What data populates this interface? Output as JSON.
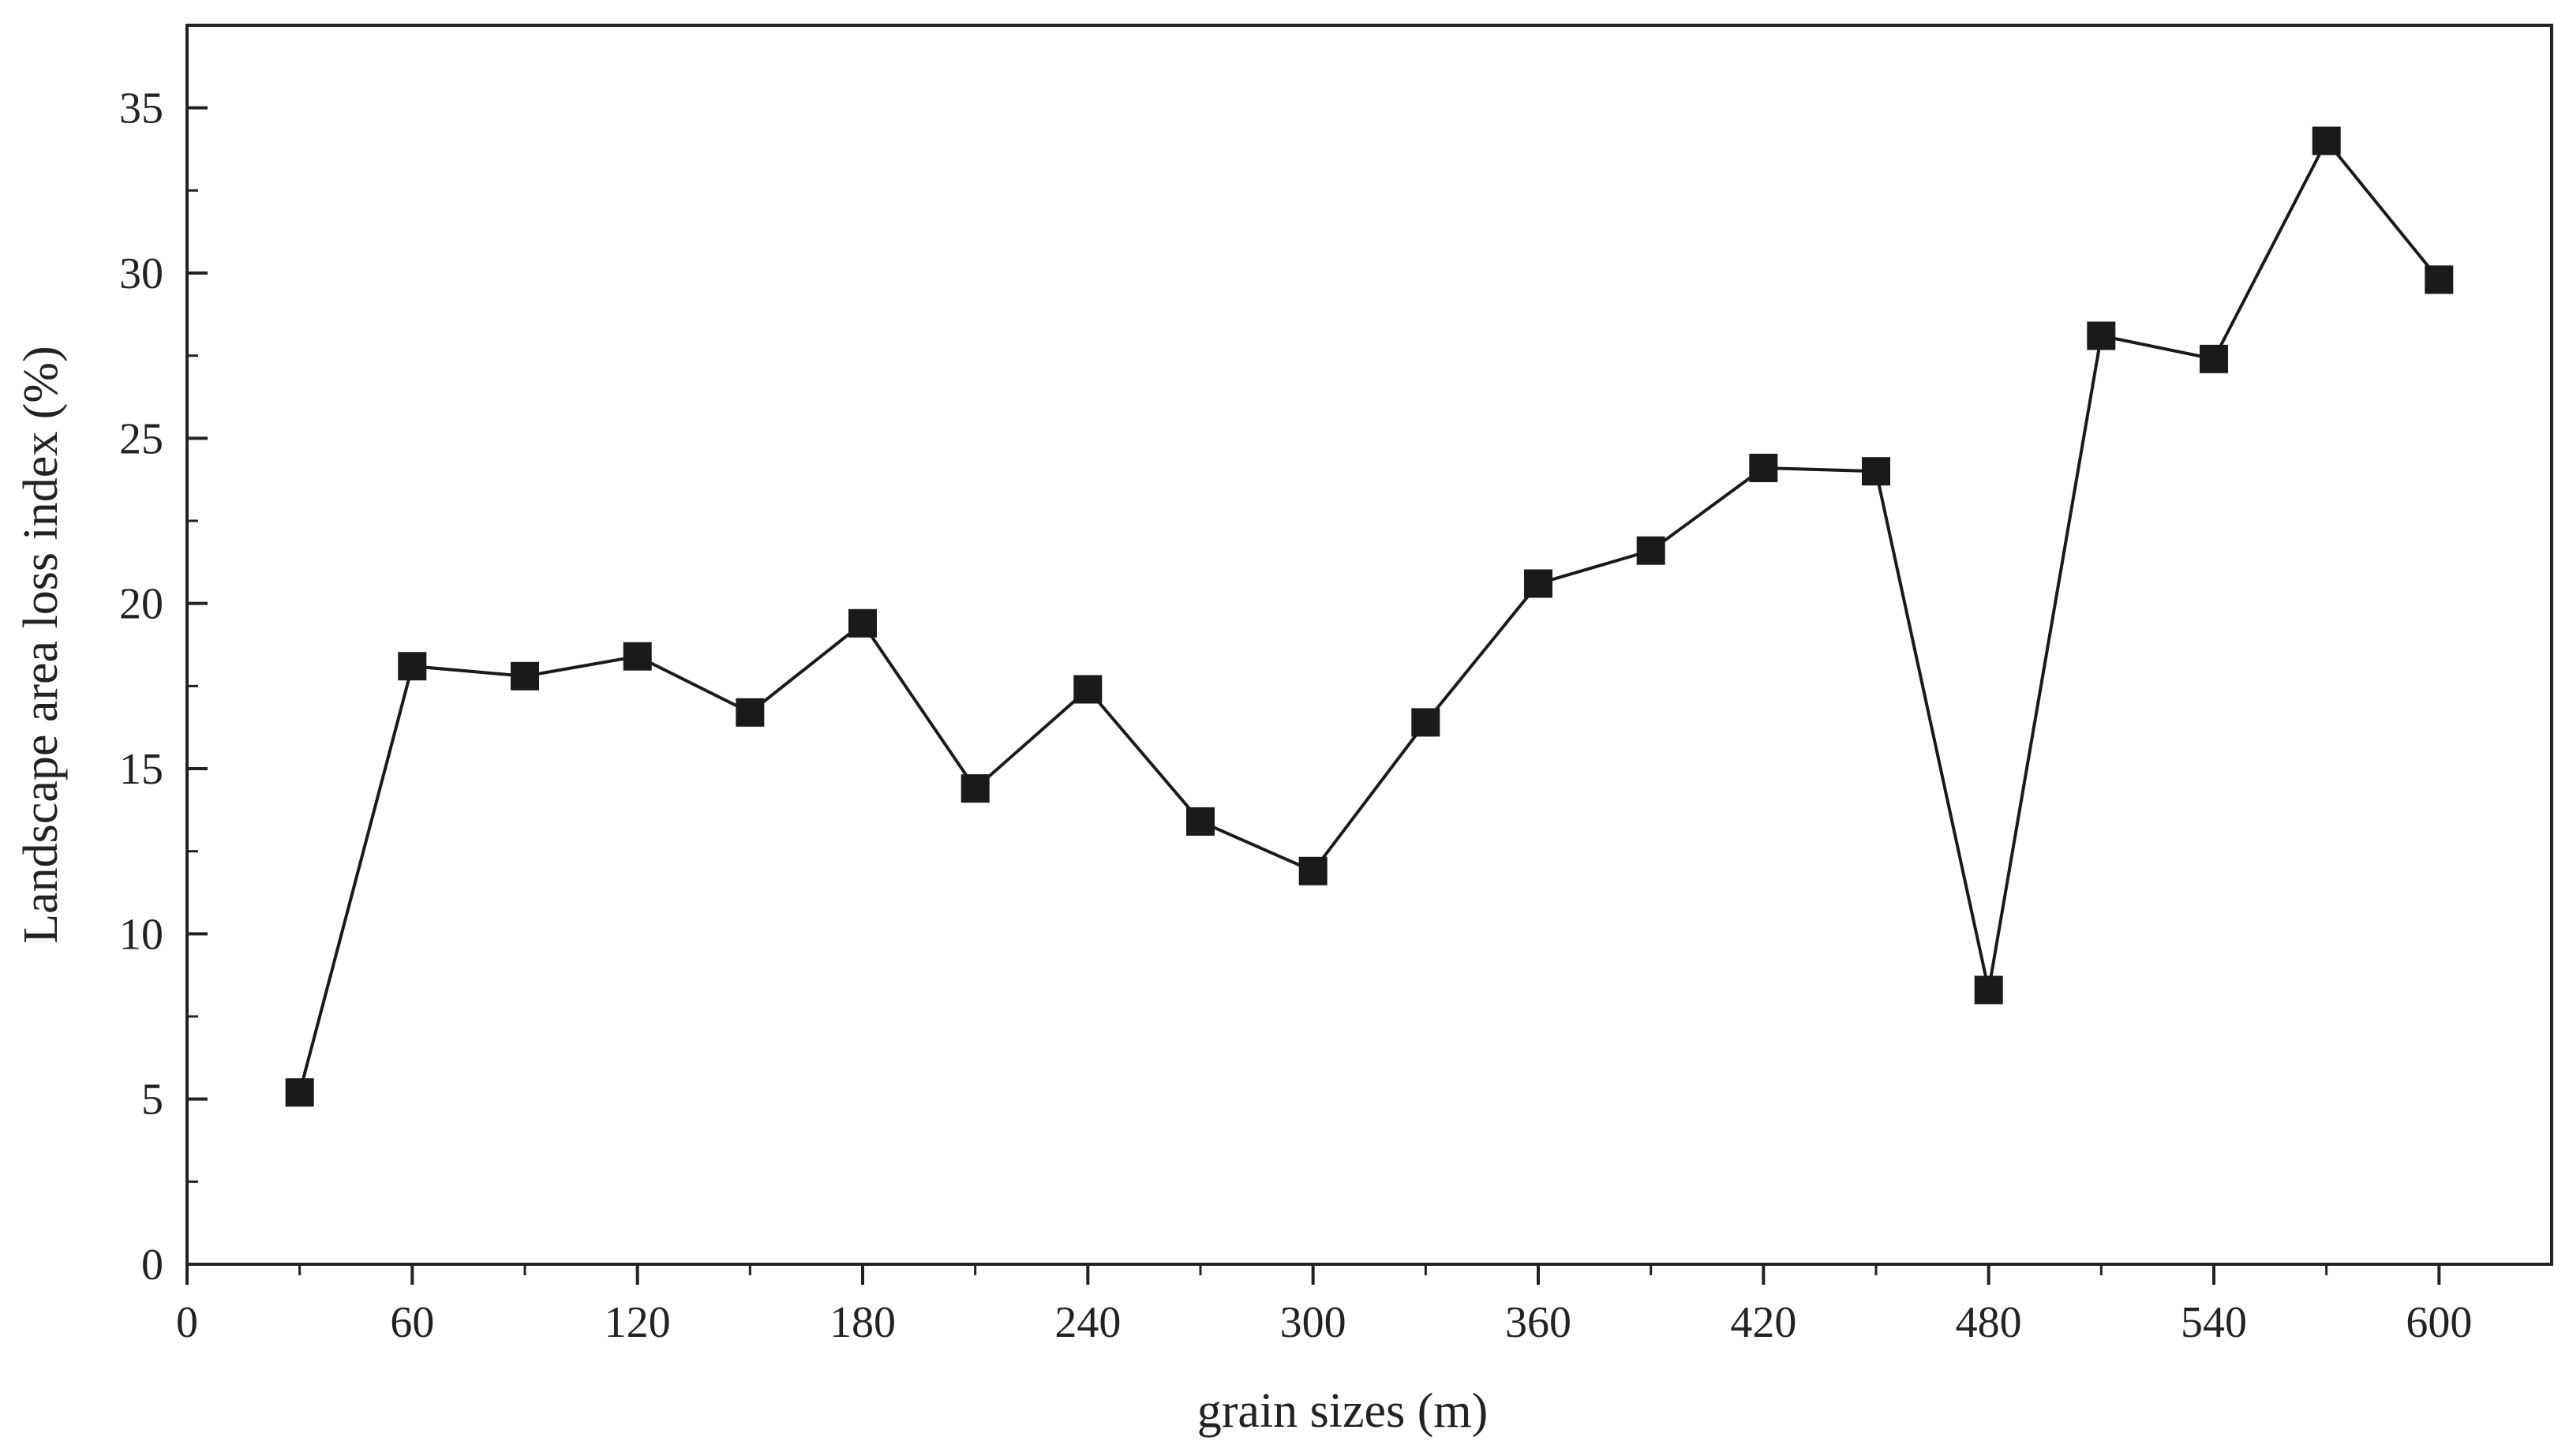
{
  "chart_data": {
    "type": "line",
    "title": "",
    "xlabel": "grain sizes (m)",
    "ylabel": "Landscape area loss index (%)",
    "xlim": [
      0,
      630
    ],
    "ylim": [
      0,
      37.5
    ],
    "x_ticks": [
      0,
      60,
      120,
      180,
      240,
      300,
      360,
      420,
      480,
      540,
      600
    ],
    "y_ticks": [
      0,
      5,
      10,
      15,
      20,
      25,
      30,
      35
    ],
    "grid": false,
    "legend": "none",
    "marker": "square",
    "series": [
      {
        "name": "Landscape area loss index",
        "color": "#1a1a1a",
        "x": [
          30,
          60,
          90,
          120,
          150,
          180,
          210,
          240,
          270,
          300,
          330,
          360,
          390,
          420,
          450,
          480,
          510,
          540,
          570,
          600
        ],
        "values": [
          5.2,
          18.1,
          17.8,
          18.4,
          16.7,
          19.4,
          14.4,
          17.4,
          13.4,
          11.9,
          16.4,
          20.6,
          21.6,
          24.1,
          24.0,
          8.3,
          28.1,
          27.4,
          34.0,
          29.8
        ]
      }
    ]
  }
}
